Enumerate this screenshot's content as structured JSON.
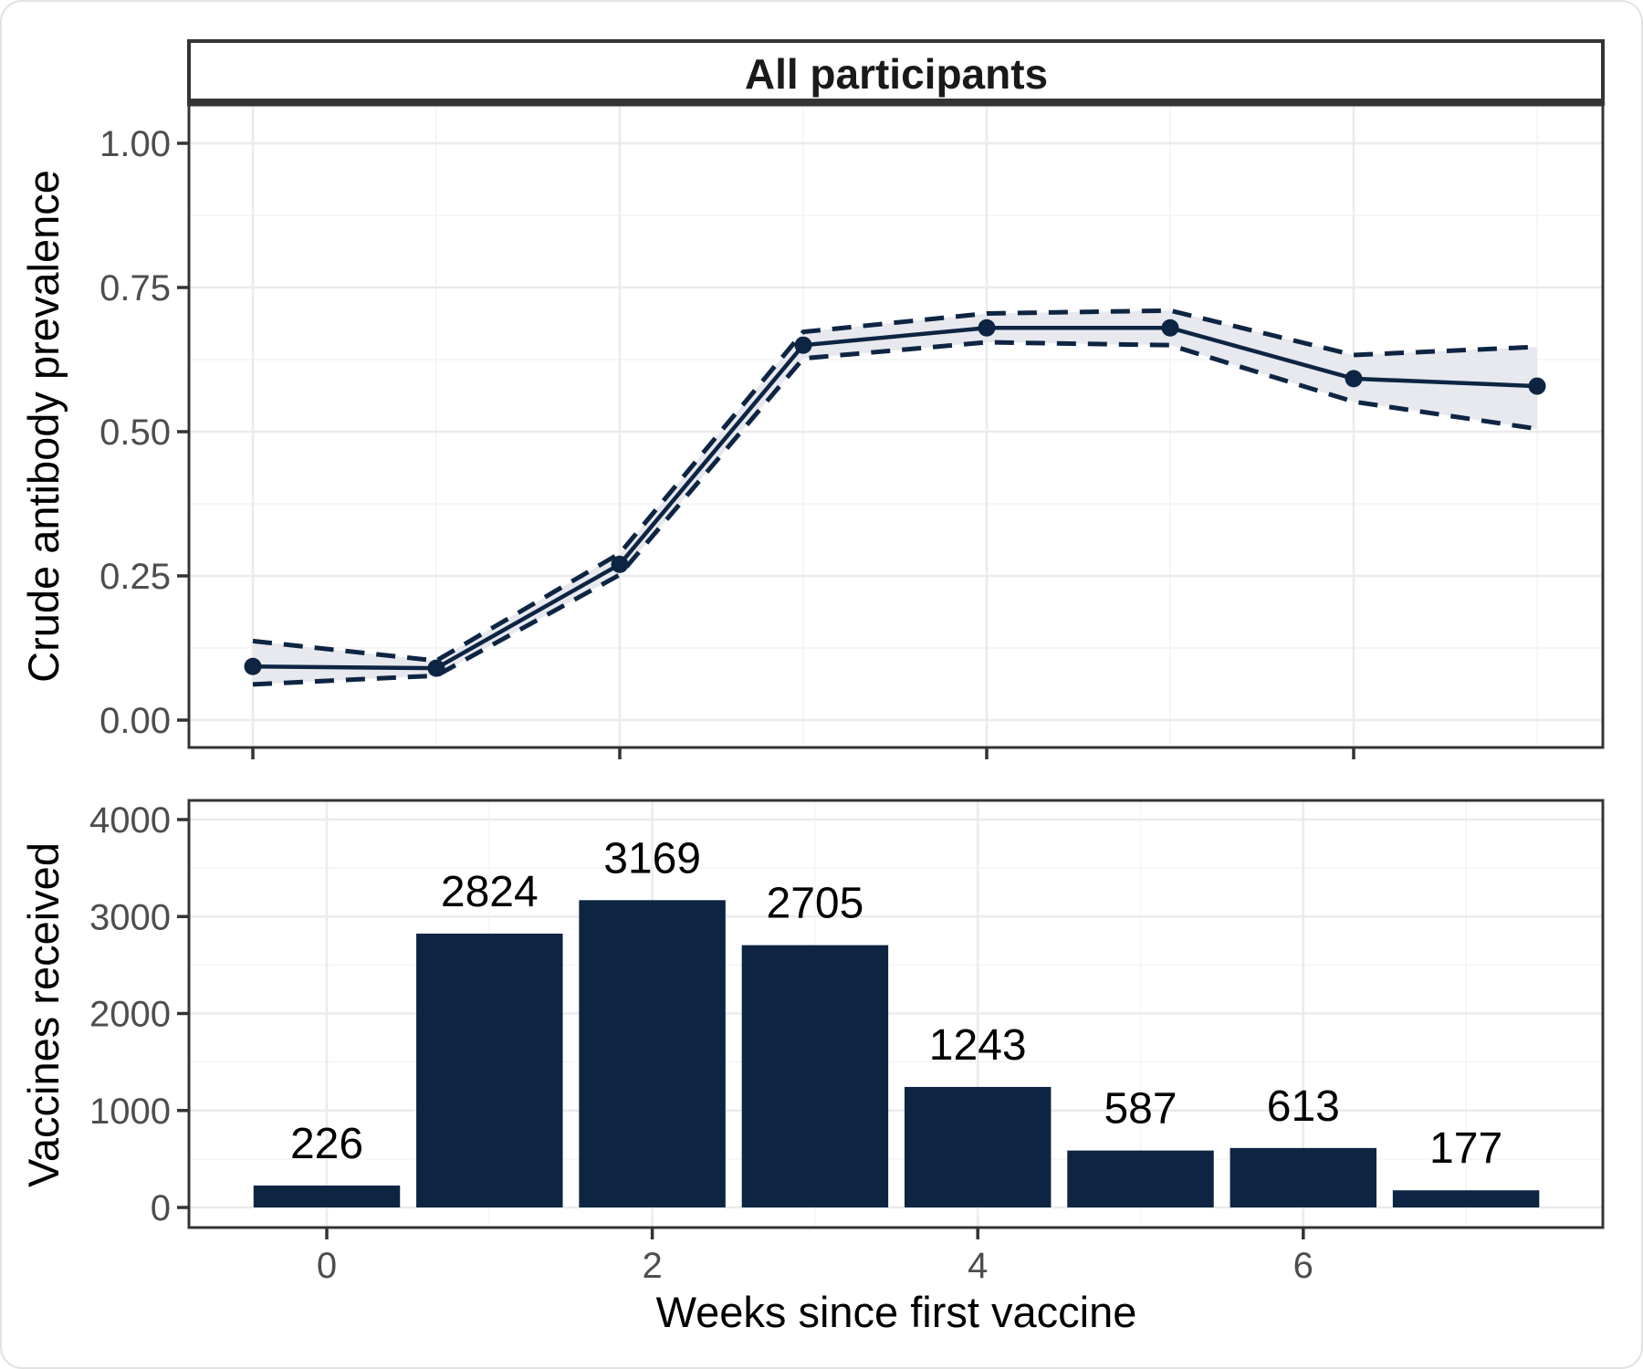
{
  "figure": {
    "background": "#ffffff",
    "outer_border_color": "#e2e2e2"
  },
  "colors": {
    "navy": "#0d2543",
    "ribbon_fill": "#e7e9ee",
    "grid_major": "#ebebeb",
    "grid_minor": "#f4f4f4",
    "panel_border": "#343434",
    "strip_bg": "#ffffff",
    "tick_mark": "#333333",
    "tick_label": "#4d4d4d",
    "axis_title": "#000000",
    "bar_fill": "#0d2543",
    "point_fill": "#0d2543"
  },
  "chart_data": [
    {
      "type": "line",
      "panel": "top",
      "strip_title": "All participants",
      "ylabel": "Crude antibody prevalence",
      "xlabel": "",
      "x": [
        0,
        1,
        2,
        3,
        4,
        5,
        6,
        7
      ],
      "series": [
        {
          "name": "crude_antibody_prevalence",
          "style": "solid-with-points",
          "values": [
            0.093,
            0.09,
            0.27,
            0.65,
            0.68,
            0.68,
            0.592,
            0.579
          ]
        },
        {
          "name": "ci_upper_dashed",
          "values": [
            0.137,
            0.103,
            0.289,
            0.673,
            0.705,
            0.71,
            0.633,
            0.647
          ]
        },
        {
          "name": "ci_lower_dashed",
          "values": [
            0.062,
            0.077,
            0.252,
            0.627,
            0.655,
            0.65,
            0.552,
            0.505
          ]
        }
      ],
      "ribbon": true,
      "ylim": [
        0,
        1
      ],
      "yticks": [
        0,
        0.25,
        0.5,
        0.75,
        1
      ],
      "ytick_labels": [
        "0.00",
        "0.25",
        "0.50",
        "0.75",
        "1.00"
      ],
      "yticks_minor": [
        0.125,
        0.375,
        0.625,
        0.875
      ],
      "xticks_major": [
        0,
        2,
        4,
        6
      ],
      "xticks_minor": [
        1,
        3,
        5,
        7
      ],
      "xtick_labels": [],
      "grid": true,
      "legend": "none"
    },
    {
      "type": "bar",
      "panel": "bottom",
      "ylabel": "Vaccines received",
      "xlabel": "Weeks since first vaccine",
      "categories": [
        0,
        1,
        2,
        3,
        4,
        5,
        6,
        7
      ],
      "values": [
        226,
        2824,
        3169,
        2705,
        1243,
        587,
        613,
        177
      ],
      "bar_labels": [
        "226",
        "2824",
        "3169",
        "2705",
        "1243",
        "587",
        "613",
        "177"
      ],
      "ylim": [
        0,
        4000
      ],
      "yticks": [
        0,
        1000,
        2000,
        3000,
        4000
      ],
      "ytick_labels": [
        "0",
        "1000",
        "2000",
        "3000",
        "4000"
      ],
      "yticks_minor": [
        500,
        1500,
        2500,
        3500
      ],
      "xticks_major": [
        0,
        2,
        4,
        6
      ],
      "xtick_labels": [
        "0",
        "2",
        "4",
        "6"
      ],
      "xticks_minor": [
        1,
        3,
        5,
        7
      ],
      "bar_width_fraction": 0.9,
      "grid": true,
      "legend": "none"
    }
  ]
}
